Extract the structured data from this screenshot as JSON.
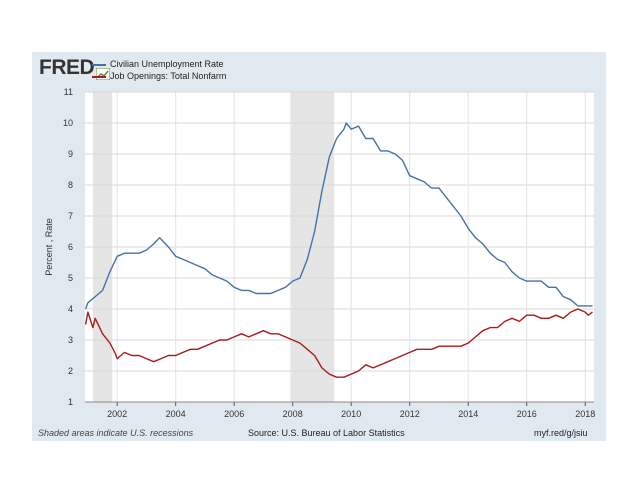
{
  "header": {
    "logo_text": "FRED",
    "logo_color": "#333333"
  },
  "chart_data": {
    "type": "line",
    "xlim": [
      2000.9,
      2018.3
    ],
    "ylim": [
      1,
      11
    ],
    "ylabel": "Percent , Rate",
    "xticks": [
      2002,
      2004,
      2006,
      2008,
      2010,
      2012,
      2014,
      2016,
      2018
    ],
    "yticks": [
      1,
      2,
      3,
      4,
      5,
      6,
      7,
      8,
      9,
      10,
      11
    ],
    "grid": true,
    "legend_position": "top-left",
    "recessions": [
      [
        2001.17,
        2001.83
      ],
      [
        2007.92,
        2009.42
      ]
    ],
    "series": [
      {
        "name": "Civilian Unemployment Rate",
        "color": "#4572a7",
        "points": [
          [
            2000.92,
            4.0
          ],
          [
            2001.0,
            4.2
          ],
          [
            2001.25,
            4.4
          ],
          [
            2001.5,
            4.6
          ],
          [
            2001.75,
            5.2
          ],
          [
            2002.0,
            5.7
          ],
          [
            2002.25,
            5.8
          ],
          [
            2002.5,
            5.8
          ],
          [
            2002.75,
            5.8
          ],
          [
            2003.0,
            5.9
          ],
          [
            2003.25,
            6.1
          ],
          [
            2003.45,
            6.3
          ],
          [
            2003.75,
            6.0
          ],
          [
            2004.0,
            5.7
          ],
          [
            2004.25,
            5.6
          ],
          [
            2004.5,
            5.5
          ],
          [
            2004.75,
            5.4
          ],
          [
            2005.0,
            5.3
          ],
          [
            2005.25,
            5.1
          ],
          [
            2005.5,
            5.0
          ],
          [
            2005.75,
            4.9
          ],
          [
            2006.0,
            4.7
          ],
          [
            2006.25,
            4.6
          ],
          [
            2006.5,
            4.6
          ],
          [
            2006.75,
            4.5
          ],
          [
            2007.0,
            4.5
          ],
          [
            2007.25,
            4.5
          ],
          [
            2007.5,
            4.6
          ],
          [
            2007.75,
            4.7
          ],
          [
            2008.0,
            4.9
          ],
          [
            2008.25,
            5.0
          ],
          [
            2008.5,
            5.6
          ],
          [
            2008.75,
            6.5
          ],
          [
            2009.0,
            7.8
          ],
          [
            2009.25,
            8.9
          ],
          [
            2009.5,
            9.5
          ],
          [
            2009.75,
            9.8
          ],
          [
            2009.83,
            10.0
          ],
          [
            2010.0,
            9.8
          ],
          [
            2010.25,
            9.9
          ],
          [
            2010.5,
            9.5
          ],
          [
            2010.75,
            9.5
          ],
          [
            2011.0,
            9.1
          ],
          [
            2011.25,
            9.1
          ],
          [
            2011.5,
            9.0
          ],
          [
            2011.75,
            8.8
          ],
          [
            2012.0,
            8.3
          ],
          [
            2012.25,
            8.2
          ],
          [
            2012.5,
            8.1
          ],
          [
            2012.75,
            7.9
          ],
          [
            2013.0,
            7.9
          ],
          [
            2013.25,
            7.6
          ],
          [
            2013.5,
            7.3
          ],
          [
            2013.75,
            7.0
          ],
          [
            2014.0,
            6.6
          ],
          [
            2014.25,
            6.3
          ],
          [
            2014.5,
            6.1
          ],
          [
            2014.75,
            5.8
          ],
          [
            2015.0,
            5.6
          ],
          [
            2015.25,
            5.5
          ],
          [
            2015.5,
            5.2
          ],
          [
            2015.75,
            5.0
          ],
          [
            2016.0,
            4.9
          ],
          [
            2016.25,
            4.9
          ],
          [
            2016.5,
            4.9
          ],
          [
            2016.75,
            4.7
          ],
          [
            2017.0,
            4.7
          ],
          [
            2017.25,
            4.4
          ],
          [
            2017.5,
            4.3
          ],
          [
            2017.75,
            4.1
          ],
          [
            2018.0,
            4.1
          ],
          [
            2018.25,
            4.1
          ]
        ]
      },
      {
        "name": "Job Openings: Total Nonfarm",
        "color": "#aa1b1b",
        "points": [
          [
            2000.92,
            3.5
          ],
          [
            2001.0,
            3.9
          ],
          [
            2001.17,
            3.4
          ],
          [
            2001.25,
            3.7
          ],
          [
            2001.5,
            3.2
          ],
          [
            2001.75,
            2.9
          ],
          [
            2001.92,
            2.6
          ],
          [
            2002.0,
            2.4
          ],
          [
            2002.25,
            2.6
          ],
          [
            2002.5,
            2.5
          ],
          [
            2002.75,
            2.5
          ],
          [
            2003.0,
            2.4
          ],
          [
            2003.25,
            2.3
          ],
          [
            2003.5,
            2.4
          ],
          [
            2003.75,
            2.5
          ],
          [
            2004.0,
            2.5
          ],
          [
            2004.25,
            2.6
          ],
          [
            2004.5,
            2.7
          ],
          [
            2004.75,
            2.7
          ],
          [
            2005.0,
            2.8
          ],
          [
            2005.25,
            2.9
          ],
          [
            2005.5,
            3.0
          ],
          [
            2005.75,
            3.0
          ],
          [
            2006.0,
            3.1
          ],
          [
            2006.25,
            3.2
          ],
          [
            2006.5,
            3.1
          ],
          [
            2006.75,
            3.2
          ],
          [
            2007.0,
            3.3
          ],
          [
            2007.25,
            3.2
          ],
          [
            2007.5,
            3.2
          ],
          [
            2007.75,
            3.1
          ],
          [
            2008.0,
            3.0
          ],
          [
            2008.25,
            2.9
          ],
          [
            2008.5,
            2.7
          ],
          [
            2008.75,
            2.5
          ],
          [
            2009.0,
            2.1
          ],
          [
            2009.25,
            1.9
          ],
          [
            2009.5,
            1.8
          ],
          [
            2009.75,
            1.8
          ],
          [
            2010.0,
            1.9
          ],
          [
            2010.25,
            2.0
          ],
          [
            2010.5,
            2.2
          ],
          [
            2010.75,
            2.1
          ],
          [
            2011.0,
            2.2
          ],
          [
            2011.25,
            2.3
          ],
          [
            2011.5,
            2.4
          ],
          [
            2011.75,
            2.5
          ],
          [
            2012.0,
            2.6
          ],
          [
            2012.25,
            2.7
          ],
          [
            2012.5,
            2.7
          ],
          [
            2012.75,
            2.7
          ],
          [
            2013.0,
            2.8
          ],
          [
            2013.25,
            2.8
          ],
          [
            2013.5,
            2.8
          ],
          [
            2013.75,
            2.8
          ],
          [
            2014.0,
            2.9
          ],
          [
            2014.25,
            3.1
          ],
          [
            2014.5,
            3.3
          ],
          [
            2014.75,
            3.4
          ],
          [
            2015.0,
            3.4
          ],
          [
            2015.25,
            3.6
          ],
          [
            2015.5,
            3.7
          ],
          [
            2015.75,
            3.6
          ],
          [
            2016.0,
            3.8
          ],
          [
            2016.25,
            3.8
          ],
          [
            2016.5,
            3.7
          ],
          [
            2016.75,
            3.7
          ],
          [
            2017.0,
            3.8
          ],
          [
            2017.25,
            3.7
          ],
          [
            2017.5,
            3.9
          ],
          [
            2017.75,
            4.0
          ],
          [
            2018.0,
            3.9
          ],
          [
            2018.1,
            3.8
          ],
          [
            2018.25,
            3.9
          ]
        ]
      }
    ]
  },
  "footer": {
    "note": "Shaded areas indicate U.S. recessions",
    "source": "Source: U.S. Bureau of Labor Statistics",
    "link": "myf.red/g/jsiu"
  }
}
